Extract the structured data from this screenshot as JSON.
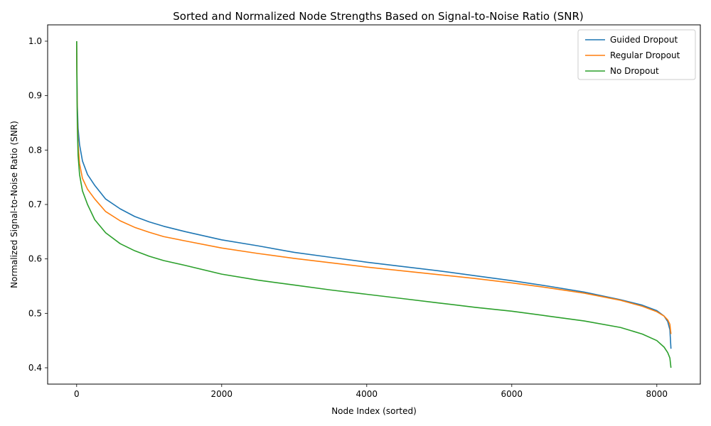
{
  "chart_data": {
    "type": "line",
    "title": "Sorted and Normalized Node Strengths Based on Signal-to-Noise Ratio (SNR)",
    "xlabel": "Node Index (sorted)",
    "ylabel": "Normalized Signal-to-Noise Ratio (SNR)",
    "xlim": [
      -400,
      8600
    ],
    "ylim": [
      0.37,
      1.03
    ],
    "xticks": [
      0,
      2000,
      4000,
      6000,
      8000
    ],
    "xtick_labels": [
      "0",
      "2000",
      "4000",
      "6000",
      "8000"
    ],
    "yticks": [
      0.4,
      0.5,
      0.6,
      0.7,
      0.8,
      0.9,
      1.0
    ],
    "ytick_labels": [
      "0.4",
      "0.5",
      "0.6",
      "0.7",
      "0.8",
      "0.9",
      "1.0"
    ],
    "grid": false,
    "legend_position": "upper right",
    "series": [
      {
        "name": "Guided Dropout",
        "color": "#1f77b4",
        "points": [
          [
            0,
            1.0
          ],
          [
            5,
            0.93
          ],
          [
            10,
            0.88
          ],
          [
            20,
            0.84
          ],
          [
            40,
            0.81
          ],
          [
            80,
            0.78
          ],
          [
            150,
            0.755
          ],
          [
            250,
            0.735
          ],
          [
            400,
            0.71
          ],
          [
            600,
            0.692
          ],
          [
            800,
            0.678
          ],
          [
            1000,
            0.668
          ],
          [
            1200,
            0.66
          ],
          [
            1500,
            0.65
          ],
          [
            2000,
            0.635
          ],
          [
            2500,
            0.624
          ],
          [
            3000,
            0.612
          ],
          [
            3500,
            0.603
          ],
          [
            4000,
            0.594
          ],
          [
            4500,
            0.586
          ],
          [
            5000,
            0.578
          ],
          [
            5500,
            0.569
          ],
          [
            6000,
            0.56
          ],
          [
            6500,
            0.55
          ],
          [
            7000,
            0.539
          ],
          [
            7500,
            0.525
          ],
          [
            7800,
            0.515
          ],
          [
            8000,
            0.505
          ],
          [
            8100,
            0.495
          ],
          [
            8150,
            0.485
          ],
          [
            8180,
            0.47
          ],
          [
            8195,
            0.435
          ]
        ]
      },
      {
        "name": "Regular Dropout",
        "color": "#ff7f0e",
        "points": [
          [
            0,
            1.0
          ],
          [
            5,
            0.92
          ],
          [
            10,
            0.86
          ],
          [
            20,
            0.81
          ],
          [
            40,
            0.775
          ],
          [
            80,
            0.748
          ],
          [
            150,
            0.728
          ],
          [
            250,
            0.71
          ],
          [
            400,
            0.687
          ],
          [
            600,
            0.67
          ],
          [
            800,
            0.658
          ],
          [
            1000,
            0.649
          ],
          [
            1200,
            0.641
          ],
          [
            1500,
            0.633
          ],
          [
            2000,
            0.62
          ],
          [
            2500,
            0.61
          ],
          [
            3000,
            0.601
          ],
          [
            3500,
            0.593
          ],
          [
            4000,
            0.585
          ],
          [
            4500,
            0.578
          ],
          [
            5000,
            0.571
          ],
          [
            5500,
            0.564
          ],
          [
            6000,
            0.556
          ],
          [
            6500,
            0.547
          ],
          [
            7000,
            0.537
          ],
          [
            7500,
            0.524
          ],
          [
            7800,
            0.513
          ],
          [
            8000,
            0.503
          ],
          [
            8100,
            0.495
          ],
          [
            8150,
            0.488
          ],
          [
            8180,
            0.48
          ],
          [
            8195,
            0.462
          ]
        ]
      },
      {
        "name": "No Dropout",
        "color": "#2ca02c",
        "points": [
          [
            0,
            1.0
          ],
          [
            5,
            0.9
          ],
          [
            10,
            0.84
          ],
          [
            20,
            0.79
          ],
          [
            40,
            0.755
          ],
          [
            80,
            0.725
          ],
          [
            150,
            0.7
          ],
          [
            250,
            0.672
          ],
          [
            400,
            0.648
          ],
          [
            600,
            0.628
          ],
          [
            800,
            0.615
          ],
          [
            1000,
            0.605
          ],
          [
            1200,
            0.597
          ],
          [
            1500,
            0.588
          ],
          [
            2000,
            0.572
          ],
          [
            2500,
            0.561
          ],
          [
            3000,
            0.552
          ],
          [
            3500,
            0.543
          ],
          [
            4000,
            0.535
          ],
          [
            4500,
            0.527
          ],
          [
            5000,
            0.519
          ],
          [
            5500,
            0.511
          ],
          [
            6000,
            0.504
          ],
          [
            6500,
            0.495
          ],
          [
            7000,
            0.486
          ],
          [
            7500,
            0.474
          ],
          [
            7800,
            0.462
          ],
          [
            8000,
            0.45
          ],
          [
            8100,
            0.438
          ],
          [
            8150,
            0.428
          ],
          [
            8180,
            0.418
          ],
          [
            8195,
            0.4
          ]
        ]
      }
    ]
  }
}
